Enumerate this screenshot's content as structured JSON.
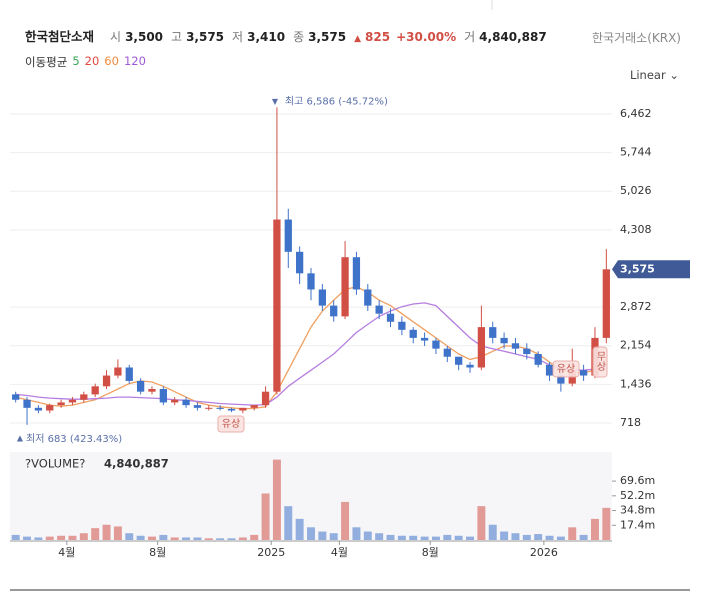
{
  "header": {
    "name": "한국첨단소재",
    "fields": [
      {
        "key": "시",
        "value": "3,500"
      },
      {
        "key": "고",
        "value": "3,575"
      },
      {
        "key": "저",
        "value": "3,410"
      },
      {
        "key": "종",
        "value": "3,575"
      }
    ],
    "change": "825",
    "change_pct": "+30.00%",
    "volume_key": "거",
    "volume": "4,840,887",
    "market": "한국거래소(KRX)",
    "scale": "Linear"
  },
  "ma_legend": {
    "title": "이동평균",
    "periods": [
      {
        "label": "5",
        "color": "#3aa757"
      },
      {
        "label": "20",
        "color": "#e0483e"
      },
      {
        "label": "60",
        "color": "#f08a3c"
      },
      {
        "label": "120",
        "color": "#a05ad6"
      }
    ]
  },
  "chart_data": {
    "type": "candlestick",
    "categories": [
      null,
      null,
      null,
      null,
      null,
      "4월",
      null,
      null,
      null,
      null,
      null,
      null,
      null,
      "8월",
      null,
      null,
      null,
      null,
      null,
      null,
      null,
      null,
      null,
      "2025",
      null,
      null,
      null,
      null,
      null,
      "4월",
      null,
      null,
      null,
      null,
      null,
      null,
      null,
      "8월",
      null,
      null,
      null,
      null,
      null,
      null,
      null,
      null,
      null,
      "2026",
      null,
      null,
      null,
      null,
      null
    ],
    "open": [
      1250,
      1150,
      1000,
      950,
      1050,
      1100,
      1150,
      1250,
      1400,
      1600,
      1750,
      1500,
      1300,
      1350,
      1100,
      1150,
      1050,
      1000,
      1000,
      980,
      950,
      1000,
      1050,
      1300,
      4500,
      3900,
      3500,
      3200,
      2900,
      2700,
      3800,
      3200,
      2900,
      2750,
      2600,
      2450,
      2300,
      2250,
      2100,
      1950,
      1800,
      1750,
      2500,
      2300,
      2200,
      2100,
      2000,
      1800,
      1600,
      1450,
      1700,
      1600,
      2300
    ],
    "high": [
      1300,
      1200,
      1050,
      1080,
      1150,
      1200,
      1300,
      1450,
      1700,
      1900,
      1800,
      1550,
      1400,
      1400,
      1200,
      1200,
      1100,
      1050,
      1050,
      1000,
      1000,
      1050,
      1400,
      6586,
      4700,
      4000,
      3600,
      3300,
      3000,
      4100,
      3900,
      3300,
      3000,
      2850,
      2700,
      2500,
      2400,
      2300,
      2150,
      1950,
      1850,
      2900,
      2600,
      2400,
      2300,
      2200,
      2050,
      1850,
      1650,
      2100,
      1800,
      2500,
      3950
    ],
    "low": [
      1100,
      683,
      900,
      900,
      1000,
      1050,
      1100,
      1200,
      1350,
      1550,
      1450,
      1250,
      1250,
      1050,
      1050,
      1000,
      950,
      950,
      950,
      920,
      900,
      950,
      1000,
      1250,
      3600,
      3300,
      3000,
      2800,
      2600,
      2650,
      3100,
      2800,
      2650,
      2500,
      2350,
      2200,
      2150,
      2000,
      1850,
      1700,
      1650,
      1700,
      2200,
      2100,
      2000,
      1900,
      1750,
      1500,
      1300,
      1400,
      1500,
      1550,
      2200
    ],
    "close": [
      1150,
      1000,
      950,
      1050,
      1100,
      1150,
      1250,
      1400,
      1600,
      1750,
      1500,
      1300,
      1350,
      1100,
      1150,
      1050,
      1000,
      1000,
      980,
      950,
      1000,
      1050,
      1300,
      4500,
      3900,
      3500,
      3200,
      2900,
      2700,
      3800,
      3200,
      2900,
      2750,
      2600,
      2450,
      2300,
      2250,
      2100,
      1950,
      1800,
      1750,
      2500,
      2300,
      2200,
      2100,
      2000,
      1800,
      1600,
      1450,
      1700,
      1600,
      2300,
      3575
    ],
    "up_color": "#d24f45",
    "down_color": "#3f72c9",
    "series": [
      {
        "name": "60",
        "color": "#f0a060",
        "values": [
          1200,
          1150,
          1100,
          1050,
          1030,
          1050,
          1100,
          1150,
          1250,
          1350,
          1450,
          1500,
          1480,
          1400,
          1300,
          1200,
          1100,
          1050,
          1020,
          1000,
          980,
          990,
          1020,
          1300,
          1700,
          2100,
          2500,
          2800,
          3000,
          3200,
          3250,
          3150,
          3000,
          2900,
          2750,
          2600,
          2450,
          2300,
          2150,
          2000,
          1900,
          1950,
          2050,
          2150,
          2150,
          2100,
          2000,
          1850,
          1700,
          1650,
          1650,
          1700,
          1900
        ]
      },
      {
        "name": "120",
        "color": "#b57ee0",
        "values": [
          1250,
          1230,
          1200,
          1180,
          1170,
          1160,
          1160,
          1170,
          1180,
          1200,
          1200,
          1190,
          1180,
          1170,
          1150,
          1140,
          1120,
          1100,
          1080,
          1070,
          1060,
          1050,
          1060,
          1200,
          1400,
          1550,
          1700,
          1850,
          2000,
          2200,
          2400,
          2550,
          2700,
          2800,
          2880,
          2930,
          2950,
          2900,
          2700,
          2500,
          2300,
          2150,
          2100,
          2050,
          2000,
          1950,
          1900,
          1800,
          1720,
          1700,
          1700,
          1720,
          1780
        ]
      }
    ],
    "ylim": [
      309,
      6815
    ],
    "yticks": [
      718,
      {
        "value": 1436,
        "label": "1,436"
      },
      {
        "value": 2154,
        "label": "2,154"
      },
      {
        "value": 2872,
        "label": "2,872"
      },
      {
        "value": 4308,
        "label": "4,308"
      },
      {
        "value": 5026,
        "label": "5,026"
      },
      {
        "value": 5744,
        "label": "5,744"
      },
      {
        "value": 6462,
        "label": "6,462"
      }
    ],
    "grid": true,
    "price_label": "3,575",
    "high_annotation": "최고 6,586 (-45.72%)",
    "low_annotation": "최저 683 (423.43%)",
    "events": [
      "유상",
      "유상",
      "무상"
    ],
    "volume_title": "?VOLUME?",
    "volume_last": "4,840,887",
    "volume": [
      6000000,
      4000000,
      3000000,
      4000000,
      5000000,
      5000000,
      8000000,
      14000000,
      18000000,
      16000000,
      8000000,
      5000000,
      4000000,
      6000000,
      3000000,
      3000000,
      3000000,
      2000000,
      2000000,
      2000000,
      3000000,
      6000000,
      55000000,
      95000000,
      40000000,
      25000000,
      15000000,
      10000000,
      8000000,
      45000000,
      15000000,
      10000000,
      8000000,
      6000000,
      5000000,
      5000000,
      4000000,
      4000000,
      6000000,
      5000000,
      4000000,
      40000000,
      18000000,
      10000000,
      8000000,
      6000000,
      7000000,
      5000000,
      4000000,
      15000000,
      6000000,
      25000000,
      38000000
    ],
    "volume_ylim": [
      0,
      104000000
    ],
    "volume_yticks": [
      {
        "value": 17400000,
        "label": "17.4m"
      },
      {
        "value": 34800000,
        "label": "34.8m"
      },
      {
        "value": 52200000,
        "label": "52.2m"
      },
      {
        "value": 69600000,
        "label": "69.6m"
      }
    ]
  }
}
